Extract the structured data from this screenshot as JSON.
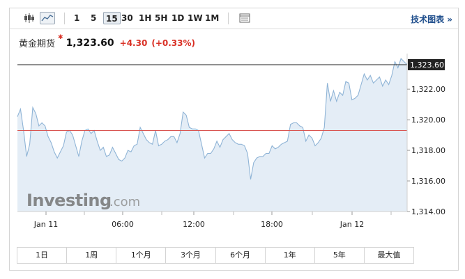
{
  "toolbar": {
    "intervals": [
      "1",
      "5",
      "15",
      "30",
      "1H",
      "5H",
      "1D",
      "1W",
      "1M"
    ],
    "active_interval": "15",
    "tech_chart_label": "技术图表 »",
    "icons": [
      "candlestick-icon",
      "area-chart-icon",
      "table-icon"
    ]
  },
  "quote": {
    "name": "黄金期货",
    "star": "✱",
    "price": "1,323.60",
    "change": "+4.30",
    "change_pct": "(+0.33%)"
  },
  "colors": {
    "line": "#8fb4d6",
    "area": "#e4edf6",
    "red_line": "#d9534f",
    "up": "#d93025"
  },
  "watermark": {
    "brand": "Investing",
    "suffix": ".com"
  },
  "ranges": [
    "1日",
    "1周",
    "1个月",
    "3个月",
    "6个月",
    "1年",
    "5年",
    "最大值"
  ],
  "chart_data": {
    "type": "area",
    "x_tick_labels": [
      "Jan 11",
      "06:00",
      "12:00",
      "18:00",
      "Jan 12"
    ],
    "y_ticks": [
      1314.0,
      1316.0,
      1318.0,
      1320.0,
      1322.0
    ],
    "y_tick_labels": [
      "1,314.00",
      "1,316.00",
      "1,318.00",
      "1,320.00",
      "1,322.00"
    ],
    "ylim": [
      1314.0,
      1324.1
    ],
    "last_price": 1323.6,
    "last_price_label": "1,323.60",
    "reference_price": 1319.3,
    "series": [
      {
        "values": [
          1320.2,
          1320.7,
          1319.3,
          1317.6,
          1318.4,
          1320.8,
          1320.4,
          1319.6,
          1319.8,
          1319.6,
          1318.9,
          1318.5,
          1317.9,
          1317.5,
          1317.9,
          1318.3,
          1319.2,
          1319.3,
          1319.0,
          1318.3,
          1317.6,
          1318.6,
          1319.3,
          1319.4,
          1319.1,
          1319.3,
          1318.6,
          1318.0,
          1318.2,
          1317.6,
          1317.7,
          1318.2,
          1317.8,
          1317.4,
          1317.3,
          1317.5,
          1318.0,
          1317.9,
          1318.3,
          1318.4,
          1319.5,
          1319.1,
          1318.7,
          1318.5,
          1318.4,
          1319.3,
          1318.3,
          1318.4,
          1318.6,
          1318.7,
          1318.9,
          1318.9,
          1318.5,
          1319.1,
          1320.5,
          1320.3,
          1319.5,
          1319.4,
          1319.4,
          1319.3,
          1318.4,
          1317.5,
          1317.8,
          1317.8,
          1318.1,
          1318.6,
          1318.2,
          1318.7,
          1318.9,
          1319.1,
          1318.7,
          1318.5,
          1318.4,
          1318.4,
          1318.3,
          1317.8,
          1316.1,
          1317.2,
          1317.5,
          1317.6,
          1317.6,
          1317.8,
          1317.8,
          1318.3,
          1318.1,
          1318.2,
          1318.4,
          1318.5,
          1318.6,
          1319.7,
          1319.8,
          1319.8,
          1319.6,
          1319.5,
          1318.6,
          1319.0,
          1318.8,
          1318.3,
          1318.5,
          1318.8,
          1319.5,
          1322.4,
          1321.2,
          1321.9,
          1321.2,
          1321.8,
          1321.6,
          1322.5,
          1322.4,
          1321.3,
          1321.4,
          1321.6,
          1322.3,
          1323.0,
          1322.6,
          1322.9,
          1322.4,
          1322.6,
          1322.8,
          1322.2,
          1322.6,
          1322.3,
          1322.9,
          1323.8,
          1323.4,
          1324.0,
          1323.8,
          1323.6
        ]
      }
    ],
    "grid": false
  }
}
